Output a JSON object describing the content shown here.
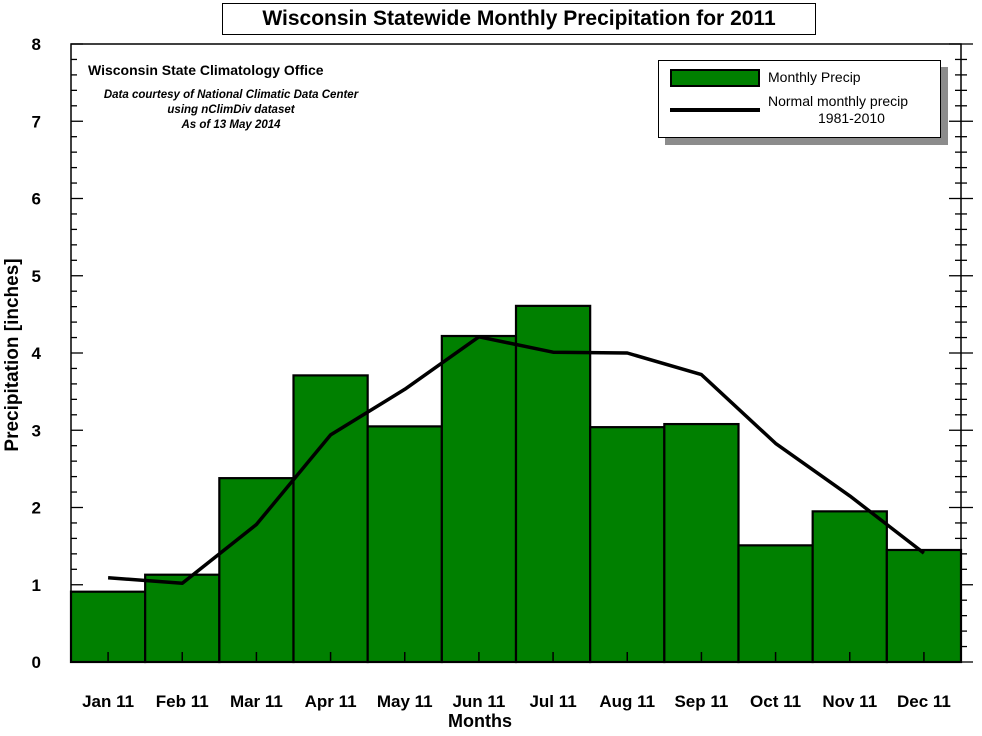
{
  "title": "Wisconsin Statewide Monthly Precipitation for 2011",
  "notes": {
    "heading": "Wisconsin State Climatology Office",
    "lines": [
      "Data courtesy of National Climatic Data Center",
      "using nClimDiv dataset",
      "As of 13 May 2014"
    ]
  },
  "legend": {
    "bar_label": "Monthly Precip",
    "line_label_1": "Normal monthly precip",
    "line_label_2": "1981-2010",
    "position": "top-right"
  },
  "colors": {
    "bar": "#008000",
    "line": "#000000",
    "shadow": "#8c8c8c"
  },
  "chart_data": {
    "type": "bar",
    "title": "Wisconsin Statewide Monthly Precipitation for 2011",
    "xlabel": "Months",
    "ylabel": "Precipitation [inches]",
    "categories": [
      "Jan 11",
      "Feb 11",
      "Mar 11",
      "Apr 11",
      "May 11",
      "Jun 11",
      "Jul 11",
      "Aug 11",
      "Sep 11",
      "Oct 11",
      "Nov 11",
      "Dec 11"
    ],
    "ylim": [
      0,
      8
    ],
    "yticks": [
      "0",
      "1",
      "2",
      "3",
      "4",
      "5",
      "6",
      "7",
      "8"
    ],
    "grid": false,
    "series": [
      {
        "name": "Monthly Precip",
        "type": "bar",
        "values": [
          0.91,
          1.13,
          2.38,
          3.71,
          3.05,
          4.22,
          4.61,
          3.04,
          3.08,
          1.51,
          1.95,
          1.45
        ]
      },
      {
        "name": "Normal monthly precip 1981-2010",
        "type": "line",
        "values": [
          1.09,
          1.02,
          1.78,
          2.94,
          3.53,
          4.21,
          4.01,
          4.0,
          3.72,
          2.83,
          2.15,
          1.41
        ]
      }
    ]
  }
}
